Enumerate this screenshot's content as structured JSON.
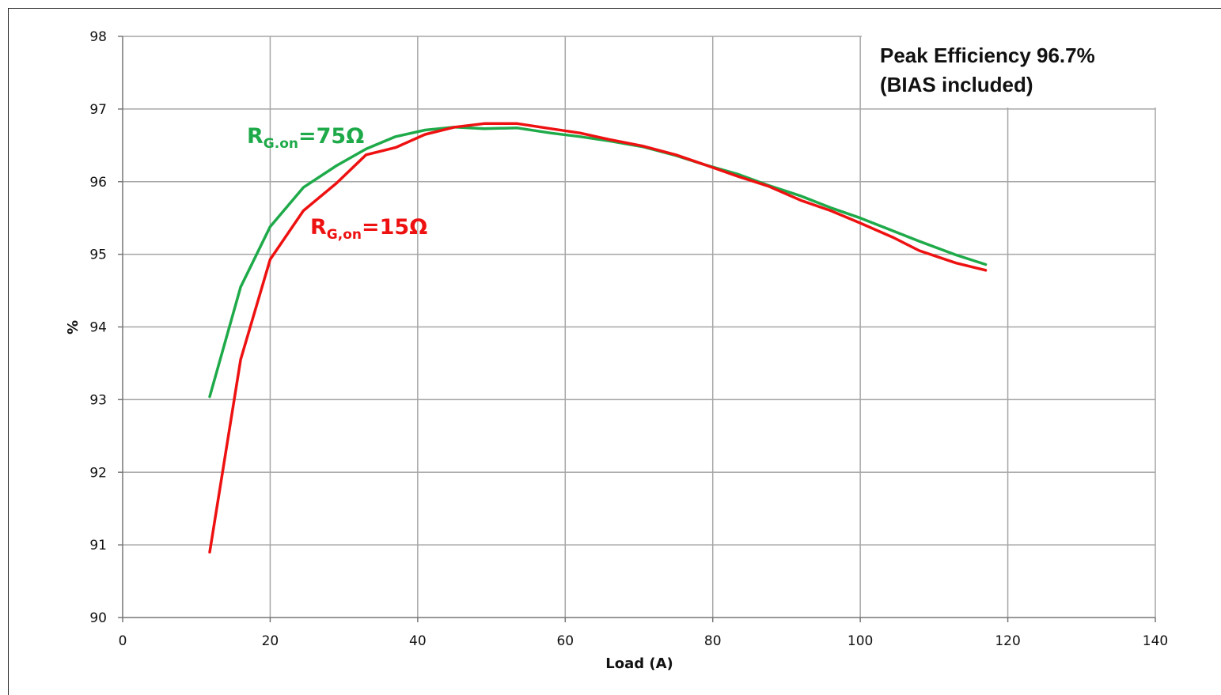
{
  "chart_data": {
    "type": "line",
    "title": "",
    "xlabel": "Load (A)",
    "ylabel": "%",
    "xlim": [
      0,
      140
    ],
    "ylim": [
      90,
      98
    ],
    "xticks": [
      "0",
      "20",
      "40",
      "60",
      "80",
      "100",
      "120",
      "140"
    ],
    "yticks": [
      "90",
      "91",
      "92",
      "93",
      "94",
      "95",
      "96",
      "97",
      "98"
    ],
    "grid": true,
    "annotation": {
      "line1": "Peak Efficiency 96.7%",
      "line2": "(BIAS included)"
    },
    "series": [
      {
        "name": "RG.on=75Ω",
        "label_main": "R",
        "label_sub": "G.on",
        "label_value": "=75Ω",
        "color": "#1faa4a",
        "x": [
          11.8,
          16,
          20,
          24.5,
          29,
          33,
          37,
          41,
          45,
          49,
          53.5,
          58,
          62,
          66,
          70.5,
          75,
          79,
          83.5,
          87.5,
          92,
          96,
          100,
          104.5,
          108,
          113,
          117
        ],
        "y": [
          93.04,
          94.55,
          95.38,
          95.92,
          96.22,
          96.45,
          96.62,
          96.71,
          96.75,
          96.73,
          96.74,
          96.67,
          96.62,
          96.56,
          96.48,
          96.36,
          96.23,
          96.1,
          95.95,
          95.8,
          95.64,
          95.5,
          95.32,
          95.18,
          94.99,
          94.86
        ]
      },
      {
        "name": "RG,on=15Ω",
        "label_main": "R",
        "label_sub": "G,on",
        "label_value": "=15Ω",
        "color": "#ee1111",
        "x": [
          11.8,
          16,
          20,
          24.5,
          29,
          33,
          37,
          41,
          45,
          49,
          53.5,
          58,
          62,
          66,
          70.5,
          75,
          79,
          83.5,
          87.5,
          92,
          96,
          100,
          104.5,
          108,
          113,
          117
        ],
        "y": [
          90.9,
          93.55,
          94.93,
          95.6,
          95.98,
          96.37,
          96.47,
          96.65,
          96.75,
          96.8,
          96.8,
          96.73,
          96.67,
          96.58,
          96.49,
          96.37,
          96.23,
          96.07,
          95.94,
          95.74,
          95.6,
          95.43,
          95.23,
          95.05,
          94.88,
          94.78
        ]
      }
    ]
  }
}
